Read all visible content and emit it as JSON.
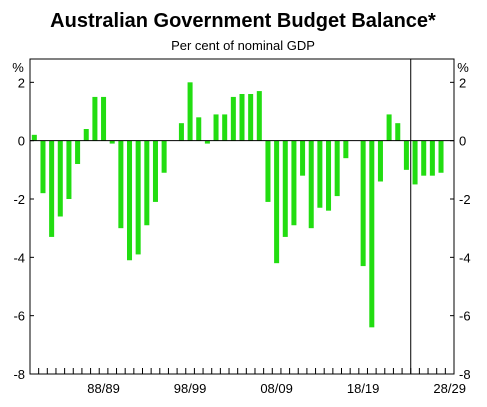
{
  "chart_data": {
    "type": "bar",
    "title": "Australian Government Budget Balance*",
    "subtitle": "Per cent of nominal GDP",
    "unit_left": "%",
    "unit_right": "%",
    "ylim": [
      -8,
      2.8
    ],
    "y_ticks": [
      {
        "value": 2,
        "label": "2"
      },
      {
        "value": 0,
        "label": "0"
      },
      {
        "value": -2,
        "label": "-2"
      },
      {
        "value": -4,
        "label": "-4"
      },
      {
        "value": -6,
        "label": "-6"
      },
      {
        "value": -8,
        "label": "-8"
      }
    ],
    "x_tick_labels": [
      {
        "year_index": 8.5,
        "label": "88/89"
      },
      {
        "year_index": 18.5,
        "label": "98/99"
      },
      {
        "year_index": 28.5,
        "label": "08/09"
      },
      {
        "year_index": 38.5,
        "label": "18/19"
      },
      {
        "year_index": 48.5,
        "label": "28/29"
      }
    ],
    "first_year": "1980/81",
    "last_year": "2028/29",
    "projection_start_year_index": 44,
    "colors": {
      "bar": "#22dd11",
      "axis": "#000000",
      "divider": "#000000"
    },
    "series": [
      {
        "values": [
          0.2,
          -1.8,
          -3.3,
          -2.6,
          -2.0,
          -0.8,
          0.4,
          1.5,
          1.5,
          -0.1,
          -3.0,
          -4.1,
          -3.9,
          -2.9,
          -2.1,
          -1.1,
          null,
          0.6,
          2.0,
          0.8,
          -0.1,
          0.9,
          0.9,
          1.5,
          1.6,
          1.6,
          1.7,
          -2.1,
          -4.2,
          -3.3,
          -2.9,
          -1.2,
          -3.0,
          -2.3,
          -2.4,
          -1.9,
          -0.6,
          null,
          -4.3,
          -6.4,
          -1.4,
          0.9,
          0.6,
          -1.0,
          -1.5,
          -1.2,
          -1.2,
          -1.1,
          null
        ]
      }
    ],
    "grid": false,
    "legend": "none"
  }
}
